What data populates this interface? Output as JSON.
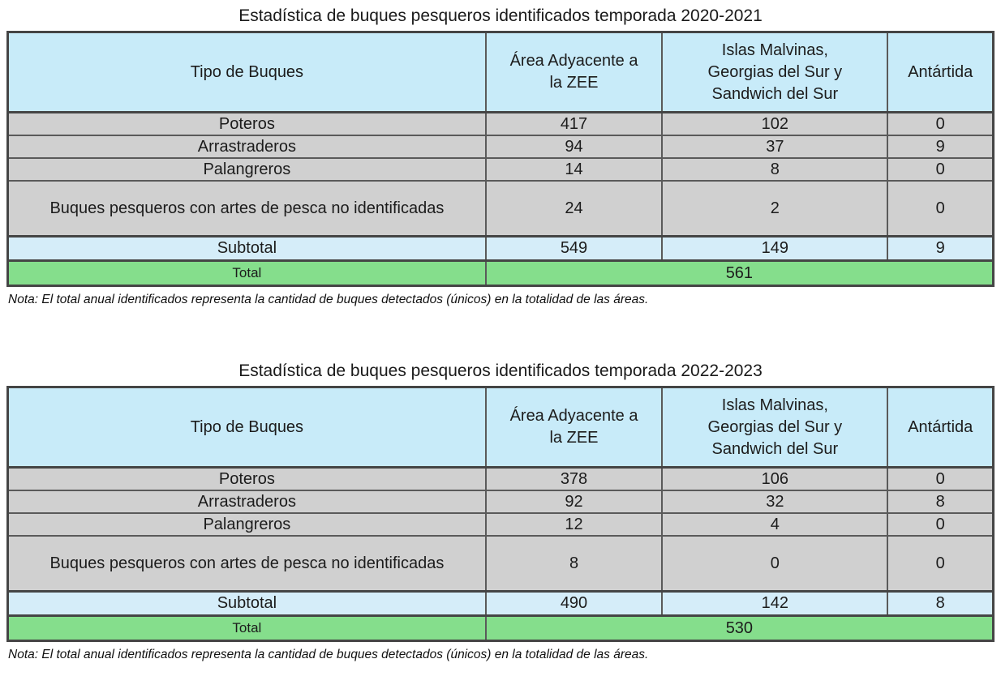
{
  "colors": {
    "header_bg": "#c8ebf9",
    "data_row_bg": "#d0d0d0",
    "subtotal_bg": "#d5edf9",
    "total_bg": "#85de8c",
    "inner_border": "#5a5a5a",
    "outer_border": "#454545",
    "text": "#1c1c1c"
  },
  "tables": [
    {
      "title": "Estadística de buques pesqueros identificados temporada 2020-2021",
      "columns": [
        "Tipo de Buques",
        "Área Adyacente a\nla ZEE",
        "Islas Malvinas,\nGeorgias del Sur y\nSandwich del Sur",
        "Antártida"
      ],
      "rows": [
        {
          "label": "Poteros",
          "values": [
            "417",
            "102",
            "0"
          ]
        },
        {
          "label": "Arrastraderos",
          "values": [
            "94",
            "37",
            "9"
          ]
        },
        {
          "label": "Palangreros",
          "values": [
            "14",
            "8",
            "0"
          ]
        },
        {
          "label": "Buques pesqueros con artes de pesca no identificadas",
          "values": [
            "24",
            "2",
            "0"
          ]
        }
      ],
      "subtotal": {
        "label": "Subtotal",
        "values": [
          "549",
          "149",
          "9"
        ]
      },
      "total": {
        "label": "Total",
        "value": "561"
      },
      "note": "Nota: El total anual identificados representa la cantidad de buques detectados (únicos) en la totalidad de las áreas."
    },
    {
      "title": "Estadística de buques pesqueros identificados temporada 2022-2023",
      "columns": [
        "Tipo de Buques",
        "Área Adyacente a\nla ZEE",
        "Islas Malvinas,\nGeorgias del Sur y\nSandwich del Sur",
        "Antártida"
      ],
      "rows": [
        {
          "label": "Poteros",
          "values": [
            "378",
            "106",
            "0"
          ]
        },
        {
          "label": "Arrastraderos",
          "values": [
            "92",
            "32",
            "8"
          ]
        },
        {
          "label": "Palangreros",
          "values": [
            "12",
            "4",
            "0"
          ]
        },
        {
          "label": "Buques pesqueros con artes de pesca no identificadas",
          "values": [
            "8",
            "0",
            "0"
          ]
        }
      ],
      "subtotal": {
        "label": "Subtotal",
        "values": [
          "490",
          "142",
          "8"
        ]
      },
      "total": {
        "label": "Total",
        "value": "530"
      },
      "note": "Nota: El total anual identificados representa la cantidad de buques detectados (únicos) en la totalidad de las áreas."
    }
  ]
}
